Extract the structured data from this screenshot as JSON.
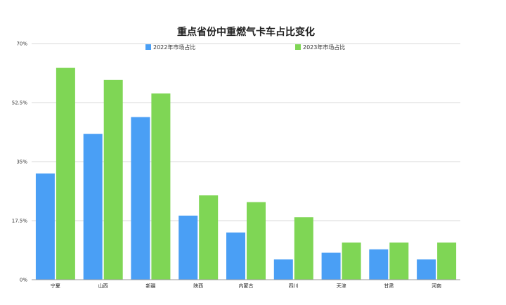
{
  "chart_data": {
    "type": "bar",
    "title": "重点省份中重燃气卡车占比变化",
    "categories": [
      "宁夏",
      "山西",
      "新疆",
      "陕西",
      "内蒙古",
      "四川",
      "天津",
      "甘肃",
      "河南"
    ],
    "series": [
      {
        "name": "2022年市场占比",
        "color": "#4a9ff5",
        "values": [
          31.5,
          43.2,
          48.2,
          19.0,
          14.0,
          6.0,
          8.0,
          9.0,
          6.0
        ]
      },
      {
        "name": "2023年市场占比",
        "color": "#7fd655",
        "values": [
          62.8,
          59.2,
          55.2,
          25.0,
          23.0,
          18.5,
          11.0,
          11.0,
          11.0
        ]
      }
    ],
    "yticks": [
      "0%",
      "17.5%",
      "35%",
      "52.5%",
      "70%"
    ],
    "ylim": [
      0,
      70
    ],
    "legend_position": "top",
    "grid": true
  }
}
